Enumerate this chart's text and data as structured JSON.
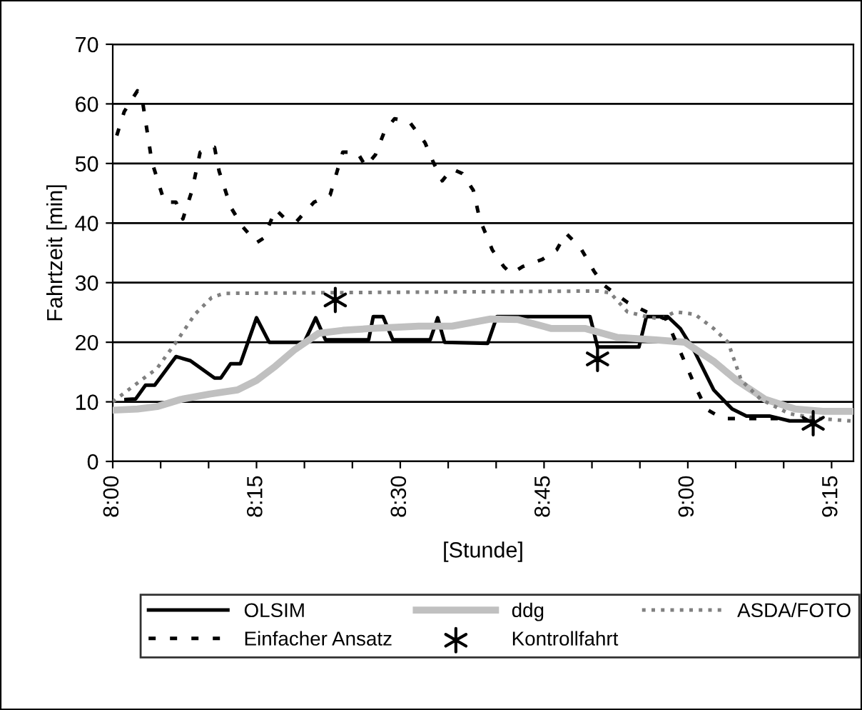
{
  "chart_data": {
    "type": "line",
    "xlabel": "[Stunde]",
    "ylabel": "Fahrtzeit [min]",
    "xlim": [
      8.0,
      9.288
    ],
    "ylim": [
      0,
      70
    ],
    "xticks": [
      {
        "value": 8.0,
        "label": "8:00"
      },
      {
        "value": 8.0833,
        "label": null
      },
      {
        "value": 8.1667,
        "label": null
      },
      {
        "value": 8.25,
        "label": "8:15"
      },
      {
        "value": 8.3333,
        "label": null
      },
      {
        "value": 8.4167,
        "label": null
      },
      {
        "value": 8.5,
        "label": "8:30"
      },
      {
        "value": 8.5833,
        "label": null
      },
      {
        "value": 8.6667,
        "label": null
      },
      {
        "value": 8.75,
        "label": "8:45"
      },
      {
        "value": 8.8333,
        "label": null
      },
      {
        "value": 8.9167,
        "label": null
      },
      {
        "value": 9.0,
        "label": "9:00"
      },
      {
        "value": 9.0833,
        "label": null
      },
      {
        "value": 9.1667,
        "label": null
      },
      {
        "value": 9.25,
        "label": "9:15"
      }
    ],
    "yticks": [
      0,
      10,
      20,
      30,
      40,
      50,
      60,
      70
    ],
    "grid": "y",
    "legend": "bottom",
    "series": [
      {
        "name": "OLSIM",
        "color": "#000000",
        "line_style": "solid",
        "x": [
          8.023,
          8.04,
          8.057,
          8.073,
          8.11,
          8.135,
          8.177,
          8.188,
          8.205,
          8.222,
          8.25,
          8.272,
          8.333,
          8.353,
          8.37,
          8.445,
          8.453,
          8.47,
          8.487,
          8.552,
          8.565,
          8.577,
          8.652,
          8.668,
          8.83,
          8.843,
          8.915,
          8.928,
          8.965,
          8.987,
          9.012,
          9.045,
          9.077,
          9.102,
          9.143,
          9.177,
          9.218
        ],
        "values": [
          10.4,
          10.5,
          12.8,
          12.8,
          17.6,
          16.9,
          14.0,
          14.0,
          16.4,
          16.4,
          24.1,
          20.0,
          20.0,
          24.1,
          20.4,
          20.4,
          24.3,
          24.3,
          20.4,
          20.4,
          24.1,
          20.0,
          19.8,
          24.3,
          24.3,
          19.2,
          19.2,
          24.3,
          24.3,
          22.3,
          18.4,
          12.0,
          8.8,
          7.6,
          7.6,
          6.8,
          6.8
        ]
      },
      {
        "name": "ddg",
        "color": "#c0c0c0",
        "line_style": "solid",
        "x": [
          8.0,
          8.043,
          8.077,
          8.118,
          8.168,
          8.217,
          8.25,
          8.283,
          8.317,
          8.358,
          8.4,
          8.448,
          8.532,
          8.59,
          8.657,
          8.705,
          8.763,
          8.822,
          8.878,
          8.945,
          8.995,
          9.045,
          9.085,
          9.135,
          9.187,
          9.235,
          9.283
        ],
        "values": [
          8.6,
          8.8,
          9.2,
          10.4,
          11.3,
          12.0,
          13.6,
          16.0,
          18.8,
          21.5,
          22.0,
          22.3,
          22.7,
          22.7,
          23.9,
          23.8,
          22.3,
          22.3,
          20.8,
          20.4,
          20.0,
          16.8,
          13.6,
          10.4,
          8.8,
          8.4,
          8.4
        ]
      },
      {
        "name": "ASDA/FOTO",
        "color": "#808080",
        "line_style": "dotted",
        "x": [
          8.0,
          8.027,
          8.077,
          8.11,
          8.143,
          8.172,
          8.193,
          8.845,
          8.865,
          8.895,
          8.928,
          8.953,
          8.978,
          9.012,
          9.045,
          9.07,
          9.093,
          9.127,
          9.177,
          9.227,
          9.283
        ],
        "values": [
          10.0,
          12.0,
          15.6,
          20.0,
          24.7,
          27.5,
          28.2,
          28.6,
          28.3,
          25.1,
          24.3,
          23.9,
          25.1,
          24.7,
          22.3,
          20.0,
          13.6,
          10.4,
          8.0,
          7.2,
          6.8
        ]
      },
      {
        "name": "Einfacher Ansatz",
        "color": "#000000",
        "line_style": "dashed",
        "x": [
          8.007,
          8.02,
          8.043,
          8.052,
          8.068,
          8.09,
          8.11,
          8.122,
          8.138,
          8.152,
          8.177,
          8.185,
          8.205,
          8.225,
          8.25,
          8.263,
          8.283,
          8.3,
          8.32,
          8.35,
          8.378,
          8.4,
          8.425,
          8.44,
          8.457,
          8.473,
          8.49,
          8.515,
          8.543,
          8.557,
          8.573,
          8.59,
          8.608,
          8.627,
          8.638,
          8.66,
          8.68,
          8.693,
          8.713,
          8.747,
          8.772,
          8.788,
          8.813,
          8.837,
          8.855,
          8.895,
          8.928,
          8.962,
          8.987,
          9.012,
          9.032,
          9.06,
          9.11,
          9.16
        ],
        "values": [
          54.7,
          58.7,
          62.2,
          60.3,
          50.3,
          43.5,
          43.5,
          40.7,
          45.5,
          51.9,
          52.7,
          48.7,
          42.7,
          39.5,
          36.7,
          37.5,
          42.3,
          40.7,
          40.3,
          43.5,
          44.7,
          51.9,
          51.9,
          49.5,
          51.5,
          55.5,
          57.5,
          57.1,
          53.5,
          50.3,
          47.1,
          49.1,
          48.3,
          45.5,
          40.7,
          35.5,
          32.7,
          31.5,
          32.7,
          33.9,
          35.5,
          38.3,
          35.9,
          31.9,
          29.5,
          26.7,
          25.1,
          23.9,
          18.4,
          12.8,
          8.8,
          7.2,
          7.2,
          7.2
        ]
      },
      {
        "name": "Kontrollfahrt",
        "type": "scatter",
        "marker": "cross",
        "color": "#000000",
        "x": [
          8.387,
          8.843,
          9.218
        ],
        "values": [
          27.1,
          17.2,
          6.4
        ]
      }
    ]
  }
}
